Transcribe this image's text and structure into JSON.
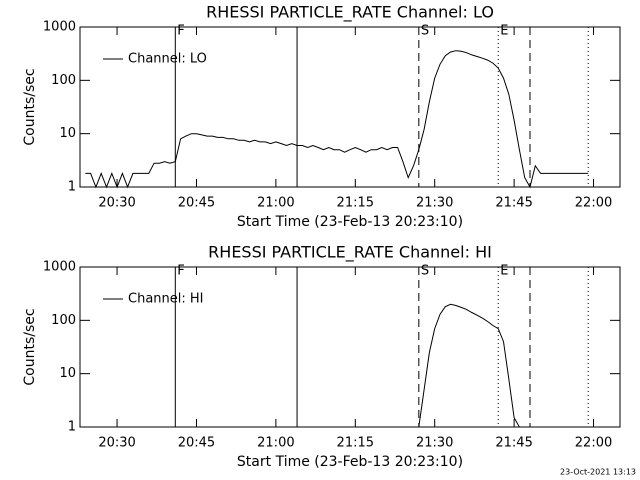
{
  "chart_data": [
    {
      "type": "line",
      "title": "RHESSI PARTICLE_RATE Channel: LO",
      "xlabel": "Start Time (23-Feb-13 20:23:10)",
      "ylabel": "Counts/sec",
      "x": [
        "20:24",
        "20:25",
        "20:26",
        "20:27",
        "20:28",
        "20:29",
        "20:30",
        "20:31",
        "20:32",
        "20:33",
        "20:34",
        "20:35",
        "20:36",
        "20:37",
        "20:38",
        "20:39",
        "20:40",
        "20:41",
        "20:42",
        "20:43",
        "20:44",
        "20:45",
        "20:46",
        "20:47",
        "20:48",
        "20:49",
        "20:50",
        "20:51",
        "20:52",
        "20:53",
        "20:54",
        "20:55",
        "20:56",
        "20:57",
        "20:58",
        "20:59",
        "21:00",
        "21:01",
        "21:02",
        "21:03",
        "21:04",
        "21:05",
        "21:06",
        "21:07",
        "21:08",
        "21:09",
        "21:10",
        "21:11",
        "21:12",
        "21:13",
        "21:14",
        "21:15",
        "21:16",
        "21:17",
        "21:18",
        "21:19",
        "21:20",
        "21:21",
        "21:22",
        "21:23",
        "21:24",
        "21:25",
        "21:26",
        "21:27",
        "21:28",
        "21:29",
        "21:30",
        "21:31",
        "21:32",
        "21:33",
        "21:34",
        "21:35",
        "21:36",
        "21:37",
        "21:38",
        "21:39",
        "21:40",
        "21:41",
        "21:42",
        "21:43",
        "21:44",
        "21:45",
        "21:46",
        "21:47",
        "21:48",
        "21:49",
        "21:50",
        "21:51",
        "21:52",
        "21:53",
        "21:54",
        "21:55",
        "21:56",
        "21:57",
        "21:58",
        "21:59"
      ],
      "series": [
        {
          "name": "Channel: LO",
          "color": "#000000",
          "values": [
            1.8,
            1.8,
            1,
            1.8,
            1,
            1.8,
            1,
            1.8,
            1,
            1.8,
            1.8,
            1.8,
            1.8,
            2.8,
            2.8,
            3,
            2.8,
            3,
            8,
            9,
            10,
            10,
            9.5,
            9,
            9,
            8.5,
            8.5,
            8,
            8,
            7.5,
            7.5,
            7,
            7.5,
            7,
            7,
            6.5,
            7,
            6.5,
            6,
            6.5,
            6,
            6,
            5.5,
            6,
            5.5,
            5,
            5.5,
            5,
            5,
            4.5,
            5,
            5.5,
            5,
            4.5,
            5,
            5,
            5.5,
            5,
            5.5,
            5.5,
            3,
            1.5,
            2.5,
            5,
            12,
            40,
            110,
            200,
            290,
            340,
            360,
            350,
            330,
            300,
            280,
            260,
            240,
            210,
            170,
            110,
            55,
            18,
            5,
            1.5,
            1,
            2.5,
            1.8,
            1.8,
            1.8,
            1.8,
            1.8,
            1.8,
            1.8,
            1.8,
            1.8,
            1.8
          ]
        }
      ],
      "xlim": [
        "20:23",
        "22:05"
      ],
      "xticks": [
        "20:30",
        "20:45",
        "21:00",
        "21:15",
        "21:30",
        "21:45",
        "22:00"
      ],
      "ylim": [
        1,
        1000
      ],
      "yticks": [
        1,
        10,
        100,
        1000
      ],
      "log_scale": true,
      "legend": "upper left",
      "vlines": [
        {
          "x": "20:41",
          "style": "solid",
          "label": "F"
        },
        {
          "x": "21:04",
          "style": "solid"
        },
        {
          "x": "21:27",
          "style": "dashed",
          "label": "S"
        },
        {
          "x": "21:42",
          "style": "dotted",
          "label": "E"
        },
        {
          "x": "21:48",
          "style": "dashed"
        },
        {
          "x": "21:59",
          "style": "dotted"
        }
      ]
    },
    {
      "type": "line",
      "title": "RHESSI PARTICLE_RATE Channel: HI",
      "xlabel": "Start Time (23-Feb-13 20:23:10)",
      "ylabel": "Counts/sec",
      "x": [
        "21:27",
        "21:28",
        "21:29",
        "21:30",
        "21:31",
        "21:32",
        "21:33",
        "21:34",
        "21:35",
        "21:36",
        "21:37",
        "21:38",
        "21:39",
        "21:40",
        "21:41",
        "21:42",
        "21:43",
        "21:44",
        "21:45",
        "21:46"
      ],
      "series": [
        {
          "name": "Channel: HI",
          "color": "#000000",
          "values": [
            1,
            5,
            25,
            70,
            130,
            180,
            200,
            190,
            175,
            160,
            140,
            125,
            110,
            95,
            80,
            70,
            40,
            8,
            1.5,
            1
          ]
        }
      ],
      "xlim": [
        "20:23",
        "22:05"
      ],
      "xticks": [
        "20:30",
        "20:45",
        "21:00",
        "21:15",
        "21:30",
        "21:45",
        "22:00"
      ],
      "ylim": [
        1,
        1000
      ],
      "yticks": [
        1,
        10,
        100,
        1000
      ],
      "log_scale": true,
      "legend": "upper left",
      "vlines": [
        {
          "x": "20:41",
          "style": "solid",
          "label": "F"
        },
        {
          "x": "21:04",
          "style": "solid"
        },
        {
          "x": "21:27",
          "style": "dashed",
          "label": "S"
        },
        {
          "x": "21:42",
          "style": "dotted",
          "label": "E"
        },
        {
          "x": "21:48",
          "style": "dashed"
        },
        {
          "x": "21:59",
          "style": "dotted"
        }
      ]
    }
  ],
  "footer": "23-Oct-2021 13:13"
}
